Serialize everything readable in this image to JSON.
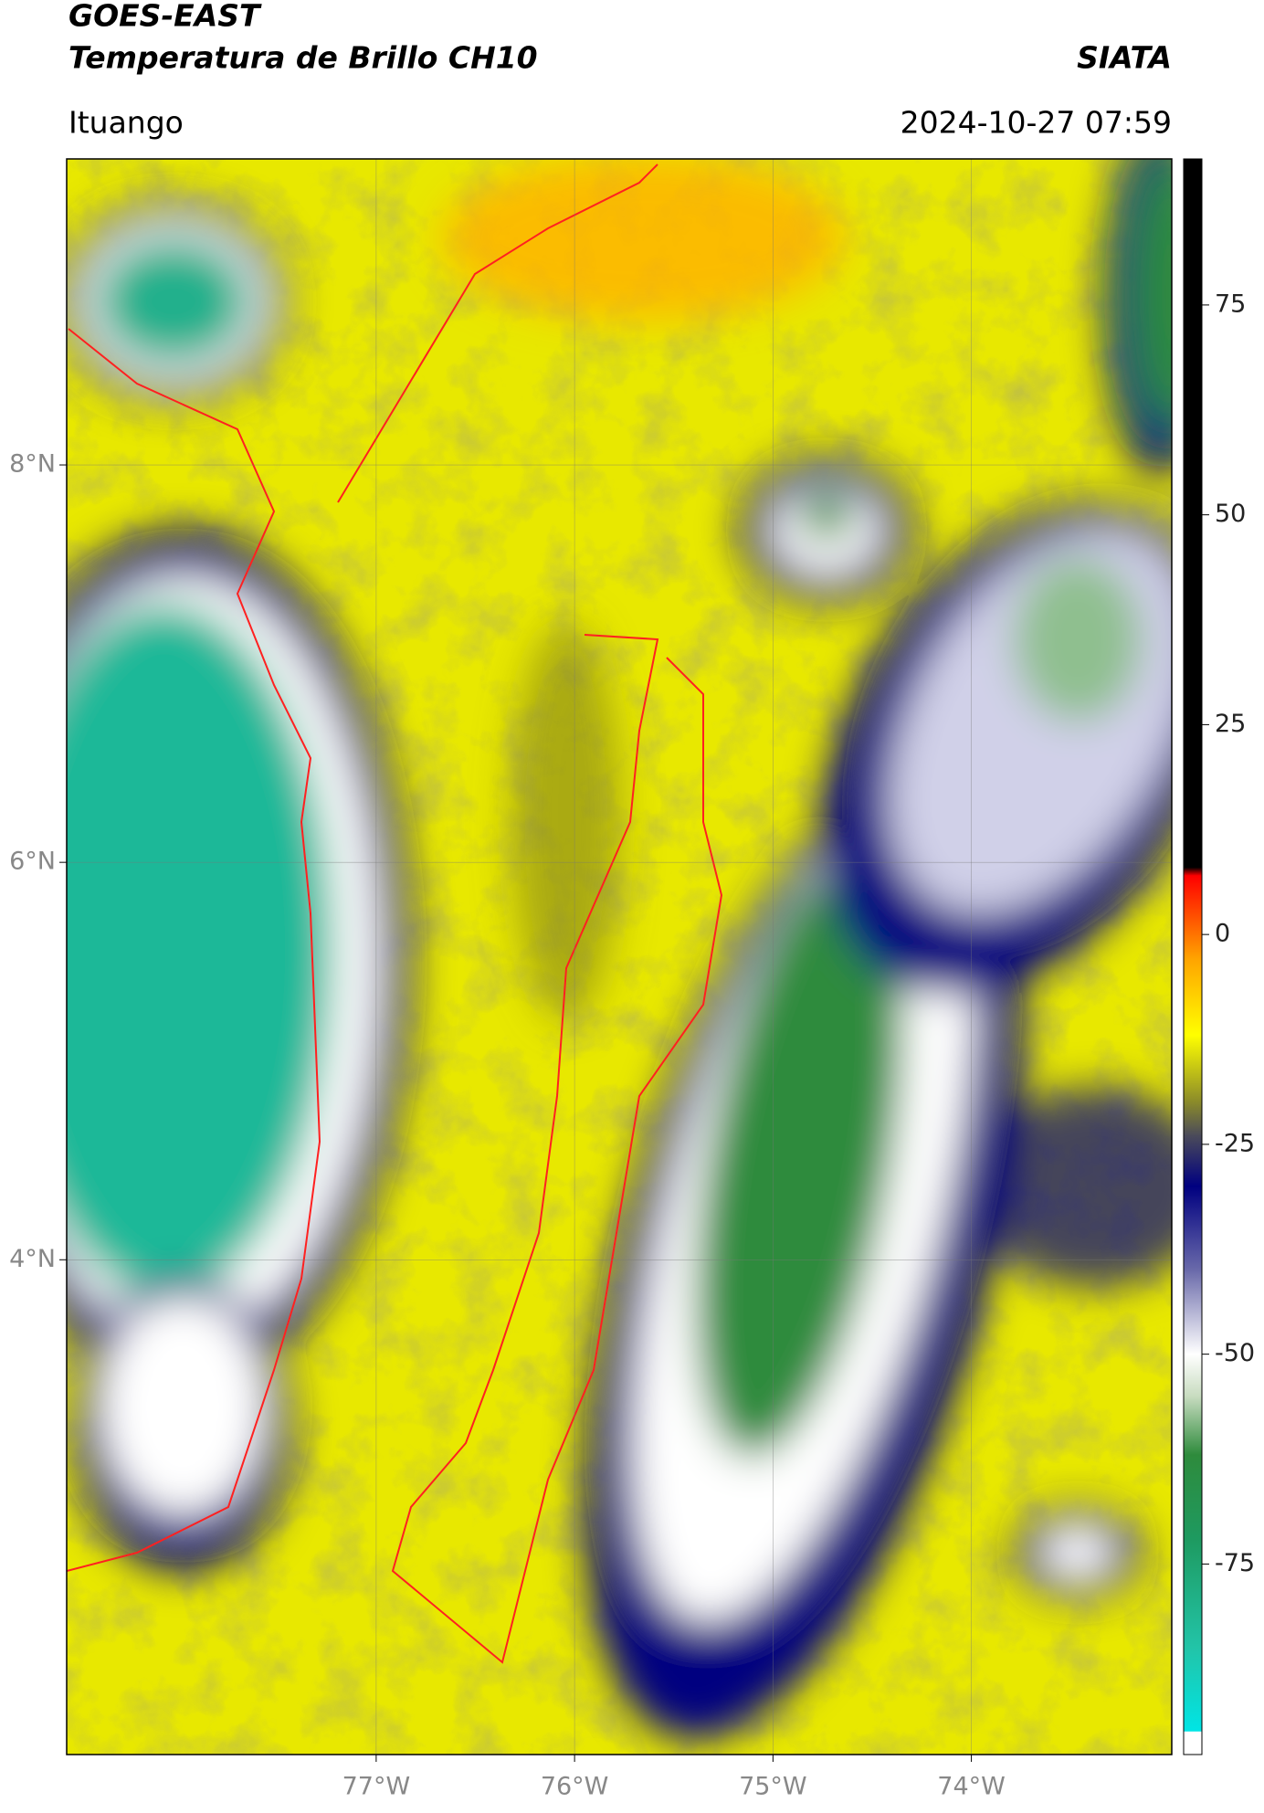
{
  "header": {
    "title": "GOES-EAST",
    "subtitle": "Temperatura de Brillo CH10",
    "brand": "SIATA",
    "location": "Ituango",
    "datetime": "2024-10-27 07:59"
  },
  "map": {
    "xlim": [
      -78.56,
      -72.99
    ],
    "ylim": [
      1.51,
      9.54
    ],
    "lon_ticks": [
      {
        "value": -77,
        "label": "77°W"
      },
      {
        "value": -76,
        "label": "76°W"
      },
      {
        "value": -75,
        "label": "75°W"
      },
      {
        "value": -74,
        "label": "74°W"
      }
    ],
    "lat_ticks": [
      {
        "value": 8,
        "label": "8°N"
      },
      {
        "value": 6,
        "label": "6°N"
      },
      {
        "value": 4,
        "label": "4°N"
      }
    ],
    "grid": true
  },
  "colorbar": {
    "clim": [
      -97.7,
      92.4
    ],
    "ticks": [
      75,
      50,
      25,
      0,
      -25,
      -50,
      -75
    ],
    "stops": [
      {
        "value": -97.7,
        "color": "#ffffff"
      },
      {
        "value": -95,
        "color": "#ffffff"
      },
      {
        "value": -94.9,
        "color": "#00e5e5"
      },
      {
        "value": -85,
        "color": "#22c4a8"
      },
      {
        "value": -72,
        "color": "#1e9a60"
      },
      {
        "value": -62,
        "color": "#2e8b3c"
      },
      {
        "value": -55,
        "color": "#c8dcc0"
      },
      {
        "value": -50,
        "color": "#ffffff"
      },
      {
        "value": -40,
        "color": "#6a6aaa"
      },
      {
        "value": -30,
        "color": "#000080"
      },
      {
        "value": -24,
        "color": "#4a4a5a"
      },
      {
        "value": -20,
        "color": "#8a8a2a"
      },
      {
        "value": -12,
        "color": "#ffff00"
      },
      {
        "value": -3,
        "color": "#ffa500"
      },
      {
        "value": 7,
        "color": "#ff0000"
      },
      {
        "value": 8,
        "color": "#000000"
      },
      {
        "value": 92.4,
        "color": "#000000"
      }
    ]
  }
}
